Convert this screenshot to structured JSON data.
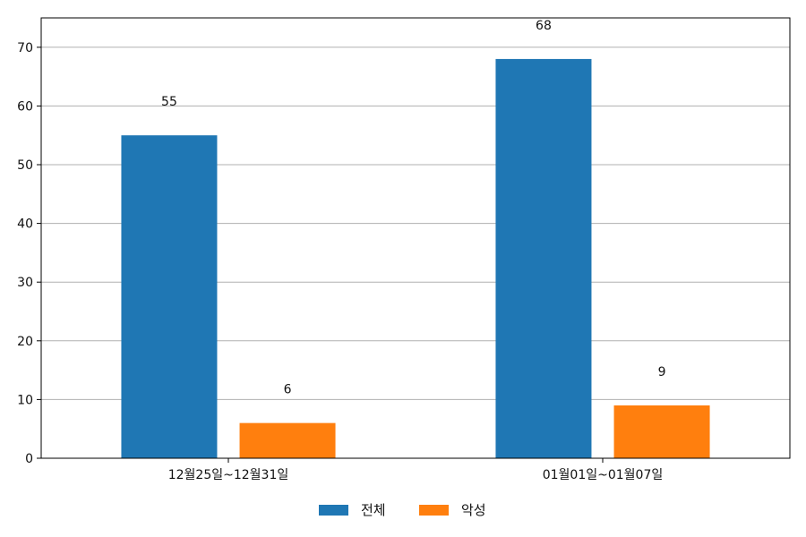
{
  "chart_data": {
    "type": "bar",
    "categories": [
      "12월25일~12월31일",
      "01월01일~01월07일"
    ],
    "series": [
      {
        "name": "전체",
        "values": [
          55,
          68
        ],
        "color": "#1f77b4"
      },
      {
        "name": "악성",
        "values": [
          6,
          9
        ],
        "color": "#ff7f0e"
      }
    ],
    "ylim": [
      0,
      75
    ],
    "yticks": [
      0,
      10,
      20,
      30,
      40,
      50,
      60,
      70
    ],
    "grid": true,
    "legend": "bottom-center",
    "title": "",
    "xlabel": "",
    "ylabel": ""
  }
}
